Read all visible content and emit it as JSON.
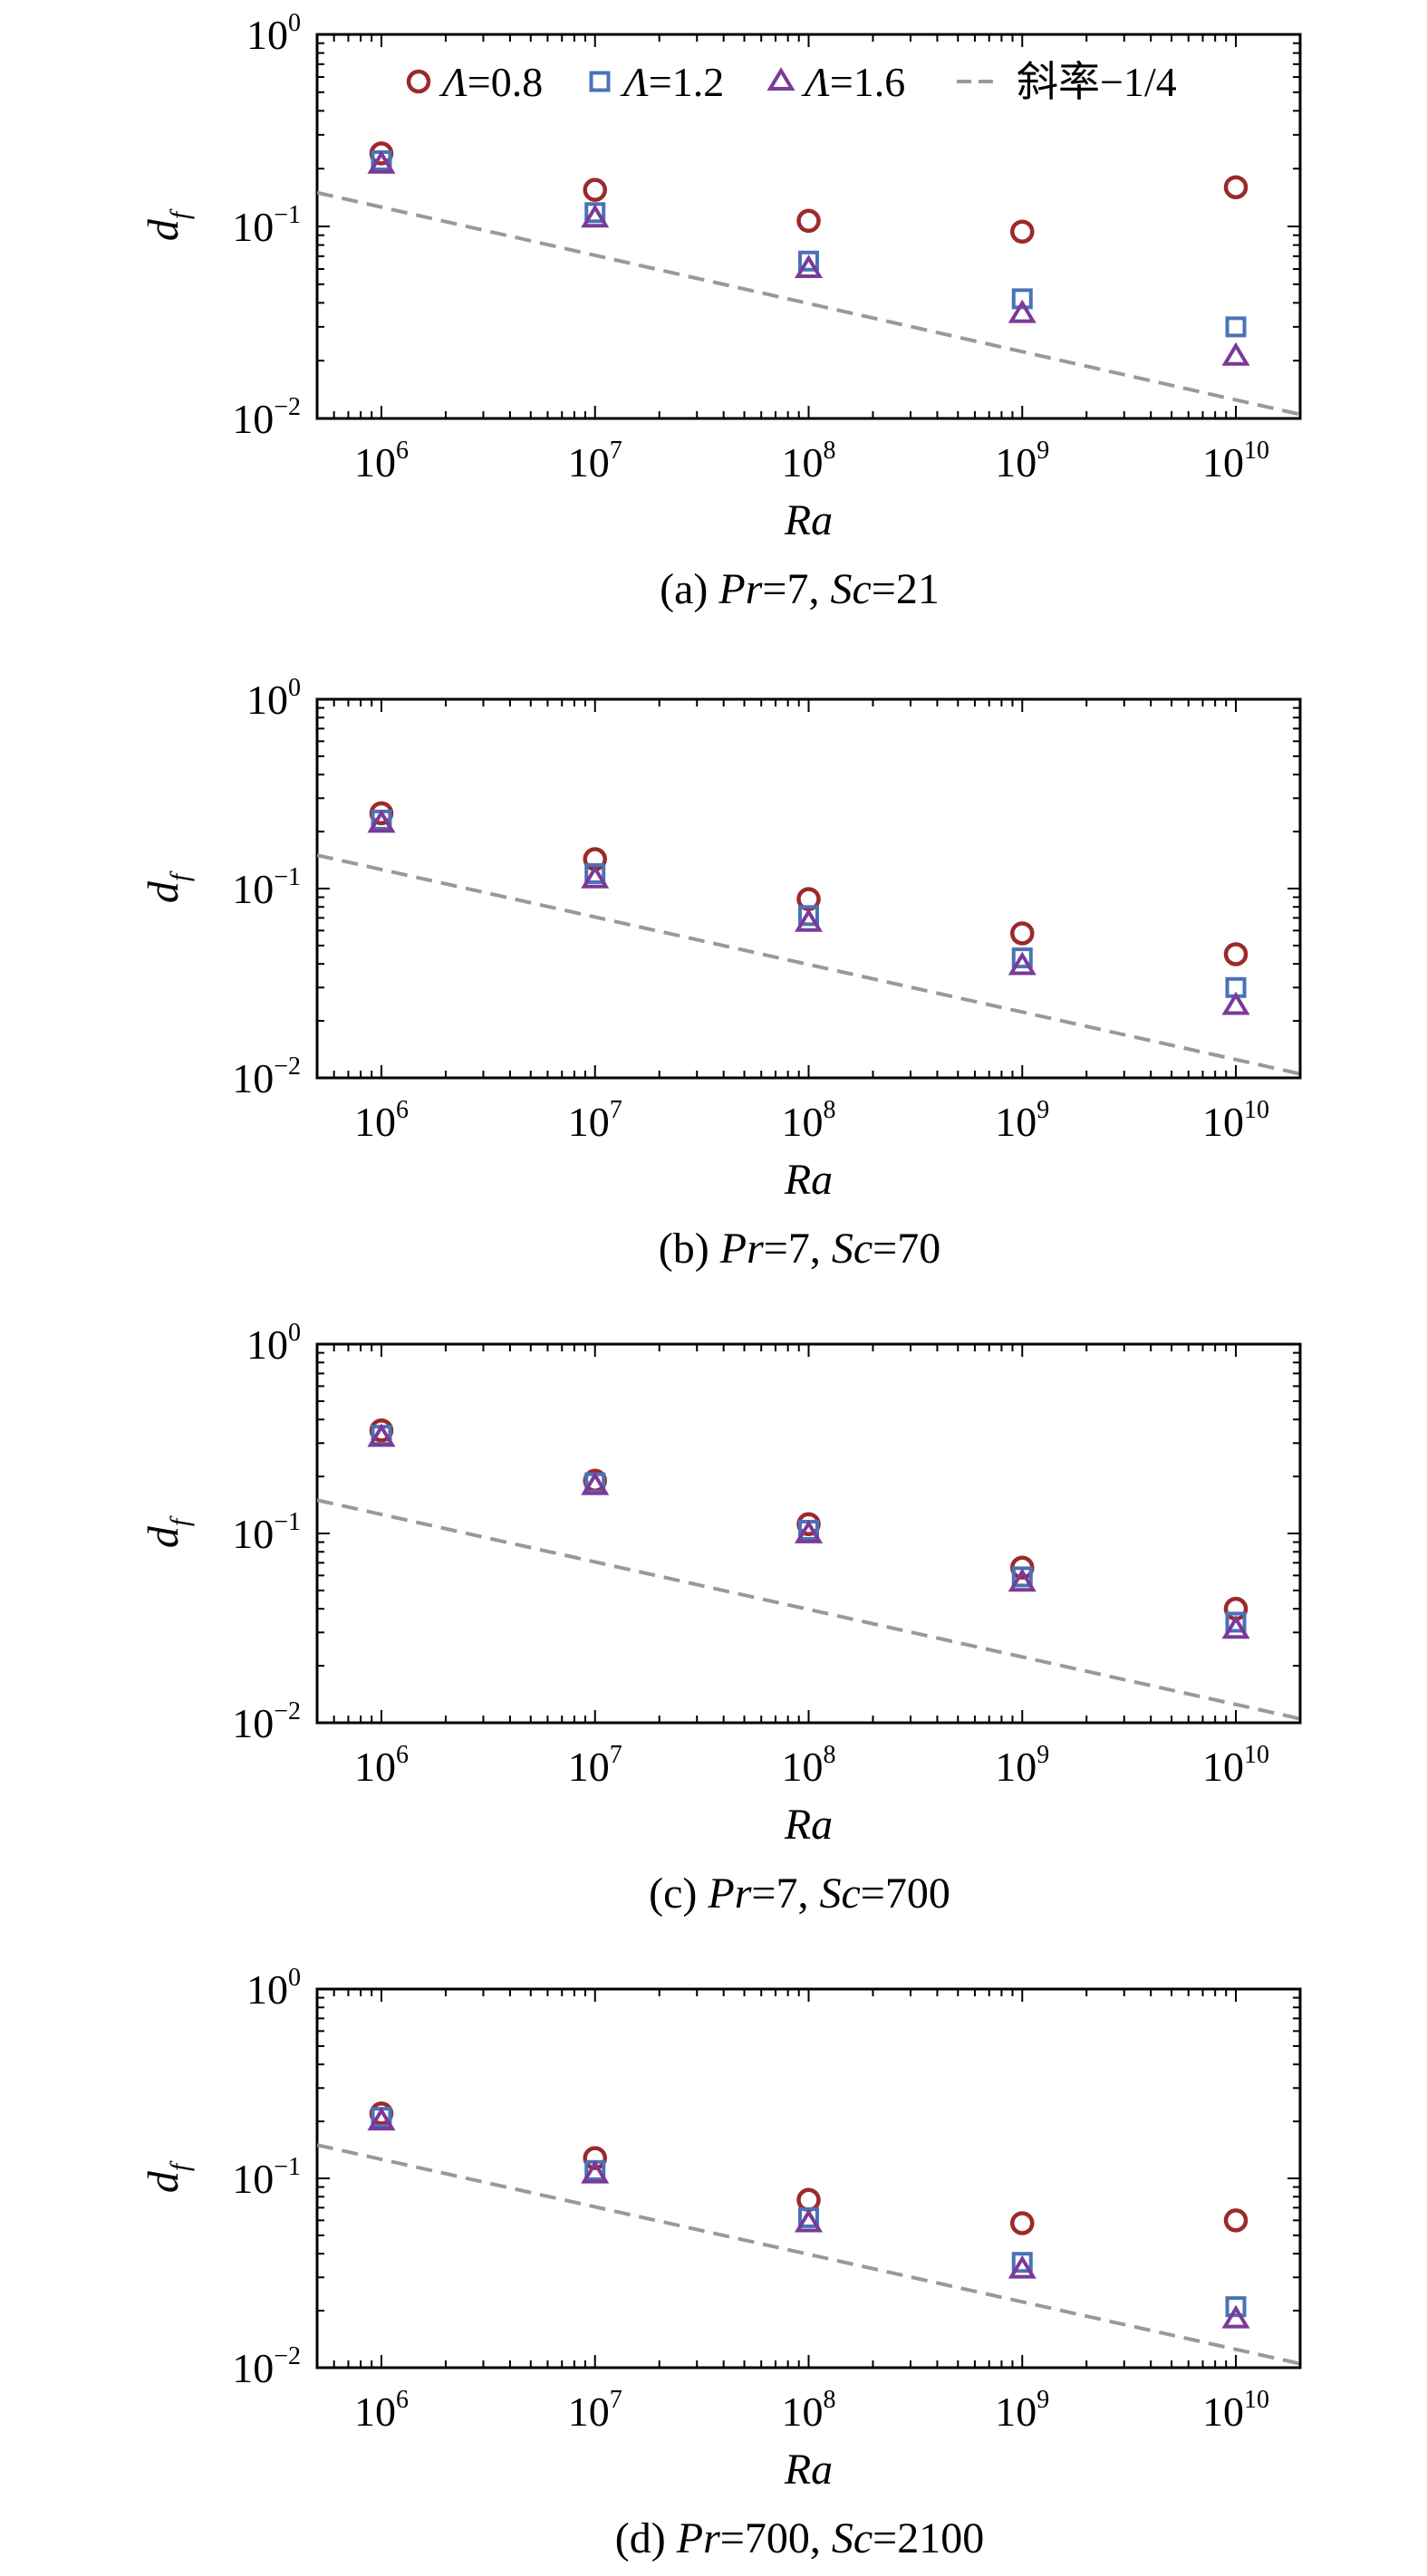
{
  "legend": {
    "items": [
      {
        "symbol": "Λ",
        "text": "=0.8",
        "marker": "circle",
        "color": "#9b2a2a"
      },
      {
        "symbol": "Λ",
        "text": "=1.2",
        "marker": "square",
        "color": "#4a72b8"
      },
      {
        "symbol": "Λ",
        "text": "=1.6",
        "marker": "triangle",
        "color": "#7a3a98"
      },
      {
        "symbol": "",
        "text": "斜率−1/4",
        "marker": "dashed-line",
        "color": "#999999"
      }
    ]
  },
  "colors": {
    "circle": "#9b2a2a",
    "square": "#4a72b8",
    "triangle": "#7a3a98",
    "reference": "#999999"
  },
  "chart_data": [
    {
      "type": "scatter",
      "panel": "a",
      "caption": {
        "prefix": "(a) ",
        "v1": "Pr",
        "e1": "=7, ",
        "v2": "Sc",
        "e2": "=21"
      },
      "xlabel": "Ra",
      "ylabel": {
        "main": "d",
        "sub": "f"
      },
      "xscale": "log",
      "yscale": "log",
      "xlim": [
        500000,
        20000000000
      ],
      "ylim": [
        0.01,
        1
      ],
      "xticks": [
        1000000,
        10000000,
        100000000,
        1000000000,
        10000000000
      ],
      "xtick_labels": [
        {
          "base": "10",
          "exp": "6"
        },
        {
          "base": "10",
          "exp": "7"
        },
        {
          "base": "10",
          "exp": "8"
        },
        {
          "base": "10",
          "exp": "9"
        },
        {
          "base": "10",
          "exp": "10"
        }
      ],
      "yticks": [
        0.01,
        0.1,
        1
      ],
      "ytick_labels": [
        {
          "base": "10",
          "exp": "−2"
        },
        {
          "base": "10",
          "exp": "−1"
        },
        {
          "base": "10",
          "exp": "0"
        }
      ],
      "x": [
        1000000,
        10000000,
        100000000,
        1000000000,
        10000000000
      ],
      "series": [
        {
          "name": "Λ=0.8",
          "marker": "circle",
          "values": [
            0.24,
            0.155,
            0.107,
            0.094,
            0.16
          ]
        },
        {
          "name": "Λ=1.2",
          "marker": "square",
          "values": [
            0.22,
            0.118,
            0.066,
            0.042,
            0.03
          ]
        },
        {
          "name": "Λ=1.6",
          "marker": "triangle",
          "values": [
            0.21,
            0.11,
            0.06,
            0.035,
            0.021
          ]
        }
      ],
      "reference_line": {
        "name": "斜率−1/4",
        "style": "dashed",
        "x": [
          500000,
          20000000000
        ],
        "y": [
          0.15,
          0.0105
        ]
      },
      "grid": false,
      "legend_position": "top"
    },
    {
      "type": "scatter",
      "panel": "b",
      "caption": {
        "prefix": "(b) ",
        "v1": "Pr",
        "e1": "=7, ",
        "v2": "Sc",
        "e2": "=70"
      },
      "xlabel": "Ra",
      "ylabel": {
        "main": "d",
        "sub": "f"
      },
      "xscale": "log",
      "yscale": "log",
      "xlim": [
        500000,
        20000000000
      ],
      "ylim": [
        0.01,
        1
      ],
      "xticks": [
        1000000,
        10000000,
        100000000,
        1000000000,
        10000000000
      ],
      "xtick_labels": [
        {
          "base": "10",
          "exp": "6"
        },
        {
          "base": "10",
          "exp": "7"
        },
        {
          "base": "10",
          "exp": "8"
        },
        {
          "base": "10",
          "exp": "9"
        },
        {
          "base": "10",
          "exp": "10"
        }
      ],
      "yticks": [
        0.01,
        0.1,
        1
      ],
      "ytick_labels": [
        {
          "base": "10",
          "exp": "−2"
        },
        {
          "base": "10",
          "exp": "−1"
        },
        {
          "base": "10",
          "exp": "0"
        }
      ],
      "x": [
        1000000,
        10000000,
        100000000,
        1000000000,
        10000000000
      ],
      "series": [
        {
          "name": "Λ=0.8",
          "marker": "circle",
          "values": [
            0.25,
            0.143,
            0.088,
            0.058,
            0.045
          ]
        },
        {
          "name": "Λ=1.2",
          "marker": "square",
          "values": [
            0.23,
            0.12,
            0.072,
            0.043,
            0.03
          ]
        },
        {
          "name": "Λ=1.6",
          "marker": "triangle",
          "values": [
            0.22,
            0.112,
            0.066,
            0.039,
            0.024
          ]
        }
      ],
      "reference_line": {
        "name": "斜率−1/4",
        "style": "dashed",
        "x": [
          500000,
          20000000000
        ],
        "y": [
          0.15,
          0.0105
        ]
      },
      "grid": false
    },
    {
      "type": "scatter",
      "panel": "c",
      "caption": {
        "prefix": "(c) ",
        "v1": "Pr",
        "e1": "=7, ",
        "v2": "Sc",
        "e2": "=700"
      },
      "xlabel": "Ra",
      "ylabel": {
        "main": "d",
        "sub": "f"
      },
      "xscale": "log",
      "yscale": "log",
      "xlim": [
        500000,
        20000000000
      ],
      "ylim": [
        0.01,
        1
      ],
      "xticks": [
        1000000,
        10000000,
        100000000,
        1000000000,
        10000000000
      ],
      "xtick_labels": [
        {
          "base": "10",
          "exp": "6"
        },
        {
          "base": "10",
          "exp": "7"
        },
        {
          "base": "10",
          "exp": "8"
        },
        {
          "base": "10",
          "exp": "9"
        },
        {
          "base": "10",
          "exp": "10"
        }
      ],
      "yticks": [
        0.01,
        0.1,
        1
      ],
      "ytick_labels": [
        {
          "base": "10",
          "exp": "−2"
        },
        {
          "base": "10",
          "exp": "−1"
        },
        {
          "base": "10",
          "exp": "0"
        }
      ],
      "x": [
        1000000,
        10000000,
        100000000,
        1000000000,
        10000000000
      ],
      "series": [
        {
          "name": "Λ=0.8",
          "marker": "circle",
          "values": [
            0.35,
            0.19,
            0.112,
            0.066,
            0.04
          ]
        },
        {
          "name": "Λ=1.2",
          "marker": "square",
          "values": [
            0.33,
            0.185,
            0.104,
            0.059,
            0.034
          ]
        },
        {
          "name": "Λ=1.6",
          "marker": "triangle",
          "values": [
            0.32,
            0.178,
            0.099,
            0.055,
            0.031
          ]
        }
      ],
      "reference_line": {
        "name": "斜率−1/4",
        "style": "dashed",
        "x": [
          500000,
          20000000000
        ],
        "y": [
          0.15,
          0.0105
        ]
      },
      "grid": false
    },
    {
      "type": "scatter",
      "panel": "d",
      "caption": {
        "prefix": "(d) ",
        "v1": "Pr",
        "e1": "=700, ",
        "v2": "Sc",
        "e2": "=2100"
      },
      "xlabel": "Ra",
      "ylabel": {
        "main": "d",
        "sub": "f"
      },
      "xscale": "log",
      "yscale": "log",
      "xlim": [
        500000,
        20000000000
      ],
      "ylim": [
        0.01,
        1
      ],
      "xticks": [
        1000000,
        10000000,
        100000000,
        1000000000,
        10000000000
      ],
      "xtick_labels": [
        {
          "base": "10",
          "exp": "6"
        },
        {
          "base": "10",
          "exp": "7"
        },
        {
          "base": "10",
          "exp": "8"
        },
        {
          "base": "10",
          "exp": "9"
        },
        {
          "base": "10",
          "exp": "10"
        }
      ],
      "yticks": [
        0.01,
        0.1,
        1
      ],
      "ytick_labels": [
        {
          "base": "10",
          "exp": "−2"
        },
        {
          "base": "10",
          "exp": "−1"
        },
        {
          "base": "10",
          "exp": "0"
        }
      ],
      "x": [
        1000000,
        10000000,
        100000000,
        1000000000,
        10000000000
      ],
      "series": [
        {
          "name": "Λ=0.8",
          "marker": "circle",
          "values": [
            0.22,
            0.128,
            0.077,
            0.058,
            0.06
          ]
        },
        {
          "name": "Λ=1.2",
          "marker": "square",
          "values": [
            0.21,
            0.11,
            0.062,
            0.036,
            0.021
          ]
        },
        {
          "name": "Λ=1.6",
          "marker": "triangle",
          "values": [
            0.2,
            0.105,
            0.058,
            0.033,
            0.018
          ]
        }
      ],
      "reference_line": {
        "name": "斜率−1/4",
        "style": "dashed",
        "x": [
          500000,
          20000000000
        ],
        "y": [
          0.15,
          0.0105
        ]
      },
      "grid": false
    }
  ]
}
